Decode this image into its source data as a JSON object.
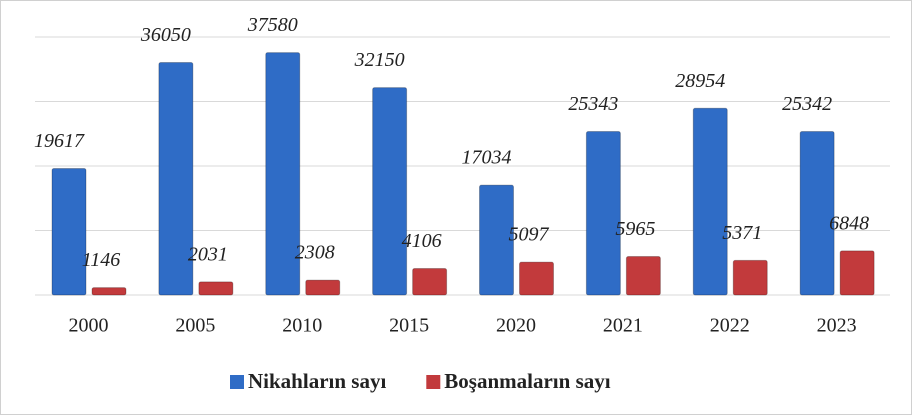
{
  "chart_data": {
    "type": "bar",
    "categories": [
      "2000",
      "2005",
      "2010",
      "2015",
      "2020",
      "2021",
      "2022",
      "2023"
    ],
    "series": [
      {
        "name": "Nikahların sayı",
        "color": "#2f6cc6",
        "values": [
          19617,
          36050,
          37580,
          32150,
          17034,
          25343,
          28954,
          25342
        ]
      },
      {
        "name": "Boşanmaların sayı",
        "color": "#c23a3c",
        "values": [
          1146,
          2031,
          2308,
          4106,
          5097,
          5965,
          5371,
          6848
        ]
      }
    ],
    "ylim": [
      0,
      40000
    ],
    "yticks": [
      0,
      10000,
      20000,
      30000,
      40000
    ],
    "grid": true,
    "legend": "bottom"
  }
}
